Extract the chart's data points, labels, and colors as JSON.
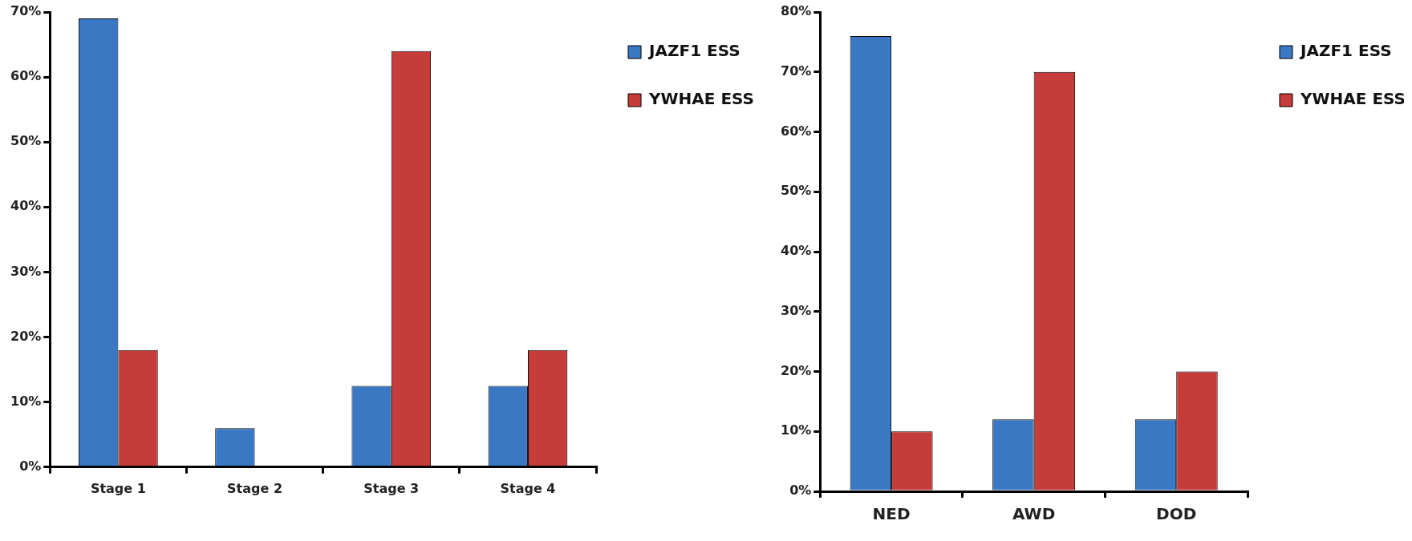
{
  "chart_data": [
    {
      "type": "bar",
      "categories": [
        "Stage 1",
        "Stage 2",
        "Stage 3",
        "Stage 4"
      ],
      "series": [
        {
          "name": "JAZF1 ESS",
          "color": "#3b78c4",
          "values": [
            69,
            6,
            12.5,
            12.5
          ]
        },
        {
          "name": "YWHAE ESS",
          "color": "#c63c3a",
          "values": [
            18,
            0,
            64,
            18
          ]
        }
      ],
      "ylim": [
        0,
        70
      ],
      "yticks": [
        {
          "value": 0,
          "label": "0%"
        },
        {
          "value": 10,
          "label": "10%"
        },
        {
          "value": 20,
          "label": "20%"
        },
        {
          "value": 30,
          "label": "30%"
        },
        {
          "value": 40,
          "label": "40%"
        },
        {
          "value": 50,
          "label": "50%"
        },
        {
          "value": 60,
          "label": "60%"
        },
        {
          "value": 70,
          "label": "70%"
        }
      ],
      "grid": false,
      "legend": "top right"
    },
    {
      "type": "bar",
      "categories": [
        "NED",
        "AWD",
        "DOD"
      ],
      "series": [
        {
          "name": "JAZF1 ESS",
          "color": "#3b78c4",
          "values": [
            76,
            12,
            12
          ]
        },
        {
          "name": "YWHAE ESS",
          "color": "#c63c3a",
          "values": [
            10,
            70,
            20
          ]
        }
      ],
      "ylim": [
        0,
        80
      ],
      "yticks": [
        {
          "value": 0,
          "label": "0%"
        },
        {
          "value": 10,
          "label": "10%"
        },
        {
          "value": 20,
          "label": "20%"
        },
        {
          "value": 30,
          "label": "30%"
        },
        {
          "value": 40,
          "label": "40%"
        },
        {
          "value": 50,
          "label": "50%"
        },
        {
          "value": 60,
          "label": "60%"
        },
        {
          "value": 70,
          "label": "70%"
        },
        {
          "value": 80,
          "label": "80%"
        }
      ],
      "grid": false,
      "legend": "top right"
    }
  ]
}
